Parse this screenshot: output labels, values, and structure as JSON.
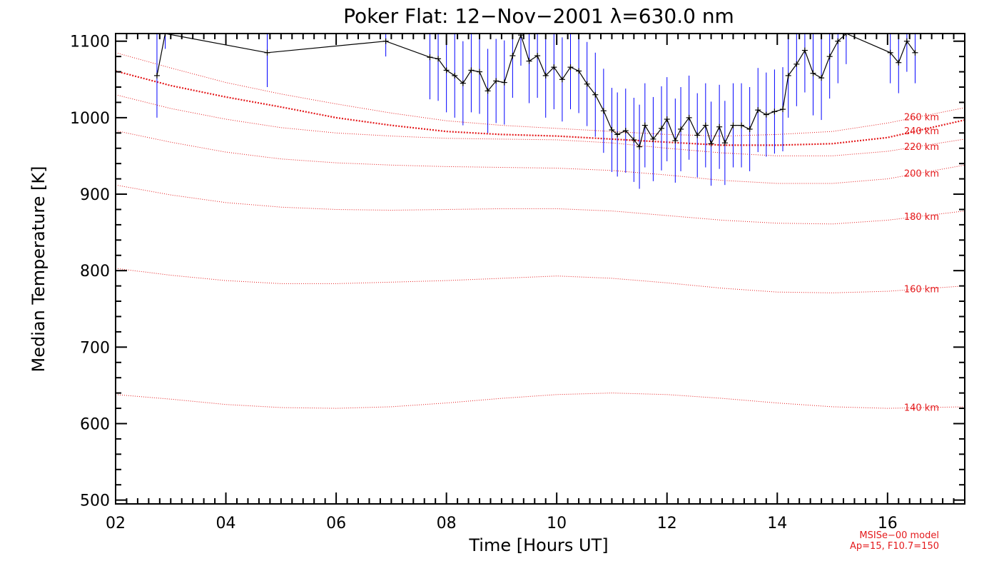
{
  "chart_data": {
    "type": "line",
    "title": "Poker Flat: 12−Nov−2001 λ=630.0 nm",
    "xlabel": "Time [Hours UT]",
    "ylabel": "Median Temperature [K]",
    "xlim": [
      2,
      17.4
    ],
    "ylim": [
      495,
      1110
    ],
    "x_ticks": [
      2,
      4,
      6,
      8,
      10,
      12,
      14,
      16
    ],
    "x_tick_labels": [
      "02",
      "04",
      "06",
      "08",
      "10",
      "12",
      "14",
      "16"
    ],
    "y_ticks": [
      500,
      600,
      700,
      800,
      900,
      1000,
      1100
    ],
    "y_tick_labels": [
      "500",
      "600",
      "700",
      "800",
      "900",
      "1000",
      "1100"
    ],
    "measured": {
      "name": "Median temperature",
      "color": "#000000",
      "errorbar_color": "#0000ff",
      "points": [
        [
          2.75,
          1055,
          55
        ],
        [
          2.9,
          1110,
          20
        ],
        [
          4.75,
          1085,
          45
        ],
        [
          6.9,
          1100,
          20
        ],
        [
          7.7,
          1079,
          55
        ],
        [
          7.85,
          1077,
          55
        ],
        [
          8.0,
          1062,
          55
        ],
        [
          8.15,
          1055,
          55
        ],
        [
          8.3,
          1045,
          55
        ],
        [
          8.45,
          1062,
          55
        ],
        [
          8.6,
          1060,
          55
        ],
        [
          8.75,
          1035,
          55
        ],
        [
          8.9,
          1048,
          55
        ],
        [
          9.05,
          1046,
          55
        ],
        [
          9.2,
          1081,
          55
        ],
        [
          9.35,
          1108,
          40
        ],
        [
          9.5,
          1074,
          55
        ],
        [
          9.65,
          1081,
          55
        ],
        [
          9.8,
          1055,
          55
        ],
        [
          9.95,
          1066,
          55
        ],
        [
          10.1,
          1050,
          55
        ],
        [
          10.25,
          1066,
          55
        ],
        [
          10.4,
          1061,
          55
        ],
        [
          10.55,
          1044,
          55
        ],
        [
          10.7,
          1030,
          55
        ],
        [
          10.85,
          1009,
          55
        ],
        [
          11.0,
          984,
          55
        ],
        [
          11.1,
          978,
          55
        ],
        [
          11.25,
          983,
          55
        ],
        [
          11.4,
          971,
          55
        ],
        [
          11.5,
          962,
          55
        ],
        [
          11.6,
          990,
          55
        ],
        [
          11.75,
          972,
          55
        ],
        [
          11.9,
          986,
          55
        ],
        [
          12.0,
          998,
          55
        ],
        [
          12.15,
          970,
          55
        ],
        [
          12.25,
          985,
          55
        ],
        [
          12.4,
          1000,
          55
        ],
        [
          12.55,
          977,
          55
        ],
        [
          12.7,
          990,
          55
        ],
        [
          12.8,
          966,
          55
        ],
        [
          12.95,
          988,
          55
        ],
        [
          13.05,
          967,
          55
        ],
        [
          13.2,
          990,
          55
        ],
        [
          13.35,
          990,
          55
        ],
        [
          13.5,
          985,
          55
        ],
        [
          13.65,
          1010,
          55
        ],
        [
          13.8,
          1004,
          55
        ],
        [
          13.95,
          1008,
          55
        ],
        [
          14.1,
          1011,
          55
        ],
        [
          14.2,
          1055,
          55
        ],
        [
          14.35,
          1070,
          55
        ],
        [
          14.5,
          1088,
          55
        ],
        [
          14.65,
          1058,
          55
        ],
        [
          14.8,
          1052,
          55
        ],
        [
          14.95,
          1080,
          55
        ],
        [
          15.1,
          1100,
          55
        ],
        [
          15.25,
          1110,
          40
        ],
        [
          16.05,
          1085,
          40
        ],
        [
          16.2,
          1072,
          40
        ],
        [
          16.35,
          1100,
          40
        ],
        [
          16.5,
          1085,
          40
        ]
      ]
    },
    "model": {
      "name": "MSISe-00 model",
      "color": "#e41a1c",
      "series": [
        {
          "name": "140 km",
          "label": "140 km",
          "x": [
            2,
            3,
            4,
            5,
            6,
            7,
            8,
            9,
            10,
            11,
            12,
            13,
            14,
            15,
            16,
            17.4
          ],
          "values": [
            638,
            632,
            625,
            621,
            620,
            622,
            627,
            633,
            638,
            640,
            638,
            633,
            627,
            622,
            620,
            622
          ]
        },
        {
          "name": "160 km",
          "label": "160 km",
          "x": [
            2,
            3,
            4,
            5,
            6,
            7,
            8,
            9,
            10,
            11,
            12,
            13,
            14,
            15,
            16,
            17.4
          ],
          "values": [
            803,
            794,
            787,
            783,
            783,
            785,
            787,
            790,
            793,
            790,
            784,
            777,
            772,
            771,
            773,
            780
          ]
        },
        {
          "name": "180 km",
          "label": "180 km",
          "x": [
            2,
            3,
            4,
            5,
            6,
            7,
            8,
            9,
            10,
            11,
            12,
            13,
            14,
            15,
            16,
            17.4
          ],
          "values": [
            912,
            899,
            889,
            883,
            880,
            879,
            880,
            881,
            881,
            878,
            872,
            866,
            862,
            861,
            866,
            878
          ]
        },
        {
          "name": "200 km",
          "label": "200 km",
          "x": [
            2,
            3,
            4,
            5,
            6,
            7,
            8,
            9,
            10,
            11,
            12,
            13,
            14,
            15,
            16,
            17.4
          ],
          "values": [
            983,
            968,
            955,
            946,
            941,
            938,
            936,
            935,
            934,
            931,
            925,
            918,
            914,
            914,
            920,
            938
          ]
        },
        {
          "name": "220 km",
          "label": "220 km",
          "x": [
            2,
            3,
            4,
            5,
            6,
            7,
            8,
            9,
            10,
            11,
            12,
            13,
            14,
            15,
            16,
            17.4
          ],
          "values": [
            1030,
            1012,
            998,
            987,
            980,
            976,
            973,
            972,
            971,
            967,
            960,
            954,
            950,
            950,
            956,
            972
          ]
        },
        {
          "name": "240 km",
          "label": "240 km",
          "x": [
            2,
            3,
            4,
            5,
            6,
            7,
            8,
            9,
            10,
            11,
            12,
            13,
            14,
            15,
            16,
            17.4
          ],
          "values": [
            1061,
            1042,
            1027,
            1014,
            1000,
            990,
            982,
            978,
            976,
            972,
            968,
            964,
            964,
            966,
            974,
            997
          ]
        },
        {
          "name": "260 km",
          "label": "260 km",
          "x": [
            2,
            3,
            4,
            5,
            6,
            7,
            8,
            9,
            10,
            11,
            12,
            13,
            14,
            15,
            16,
            17.4
          ],
          "values": [
            1085,
            1065,
            1046,
            1031,
            1018,
            1006,
            996,
            990,
            986,
            982,
            978,
            976,
            978,
            982,
            993,
            1013
          ]
        }
      ],
      "emphasized_series": "240 km"
    },
    "annotations": [
      "MSISe−00 model",
      "Ap=15, F10.7=150"
    ]
  }
}
